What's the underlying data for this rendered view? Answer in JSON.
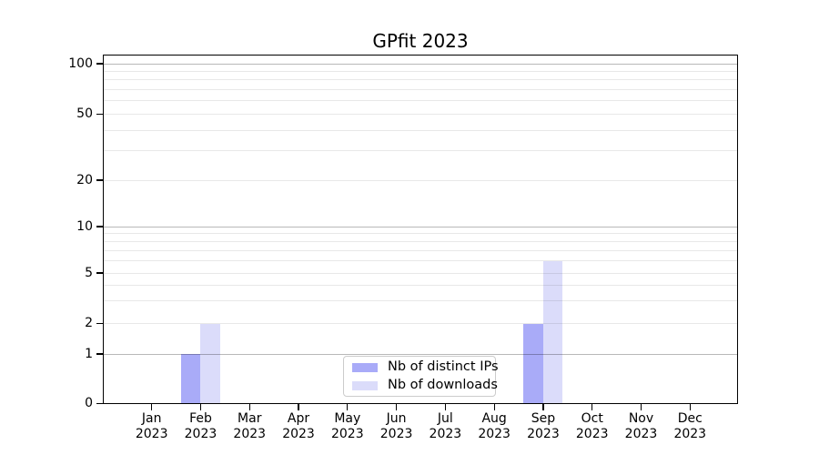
{
  "chart_data": {
    "type": "bar",
    "title": "GPfit 2023",
    "categories": [
      {
        "month": "Jan",
        "year": "2023"
      },
      {
        "month": "Feb",
        "year": "2023"
      },
      {
        "month": "Mar",
        "year": "2023"
      },
      {
        "month": "Apr",
        "year": "2023"
      },
      {
        "month": "May",
        "year": "2023"
      },
      {
        "month": "Jun",
        "year": "2023"
      },
      {
        "month": "Jul",
        "year": "2023"
      },
      {
        "month": "Aug",
        "year": "2023"
      },
      {
        "month": "Sep",
        "year": "2023"
      },
      {
        "month": "Oct",
        "year": "2023"
      },
      {
        "month": "Nov",
        "year": "2023"
      },
      {
        "month": "Dec",
        "year": "2023"
      }
    ],
    "series": [
      {
        "name": "Nb of distinct IPs",
        "color": "#a9abf8",
        "values": [
          0,
          1,
          0,
          0,
          0,
          0,
          0,
          0,
          2,
          0,
          0,
          0
        ]
      },
      {
        "name": "Nb of downloads",
        "color": "#dbdcfa",
        "values": [
          0,
          2,
          0,
          0,
          0,
          0,
          0,
          0,
          6,
          0,
          0,
          0
        ]
      }
    ],
    "xlabel": "",
    "ylabel": "",
    "y_axis": {
      "scale": "symlog",
      "tick_labels": [
        0,
        1,
        2,
        5,
        10,
        20,
        50,
        100
      ],
      "ylim": [
        0,
        115
      ]
    },
    "grid": {
      "orientation": "horizontal",
      "major_values": [
        1,
        10,
        100
      ],
      "minor_values": [
        2,
        3,
        4,
        5,
        6,
        7,
        8,
        9,
        20,
        30,
        40,
        50,
        60,
        70,
        80,
        90
      ]
    },
    "legend": {
      "position": "lower center"
    }
  }
}
